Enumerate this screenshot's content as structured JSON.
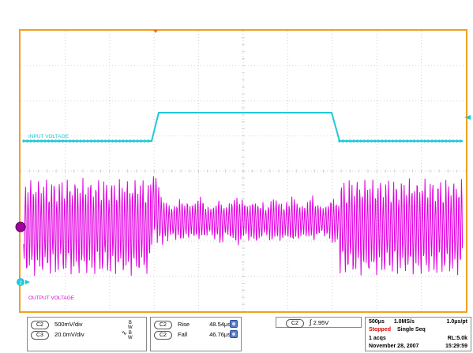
{
  "labels": {
    "input_trace": "INPUT VOLTAGE",
    "output_trace": "OUTPUT VOLTAGE",
    "ch2_marker": "2"
  },
  "channels_panel": {
    "c2_tag": "C2",
    "c2_scale": "500mV/div",
    "c3_tag": "C3",
    "c3_scale": "20.0mV/div",
    "bw_symbol": "B W"
  },
  "measurements_panel": {
    "rise_tag": "C2",
    "rise_label": "Rise",
    "rise_value": "48.54μs",
    "fall_tag": "C2",
    "fall_label": "Fall",
    "fall_value": "46.76μs"
  },
  "trigger_panel": {
    "tag": "C2",
    "level": "2.95V"
  },
  "acquisition_panel": {
    "timebase": "500μs",
    "sample_rate": "1.0MS/s",
    "resolution": "1.0μs/pt",
    "state": "Stopped",
    "mode": "Single Seq",
    "acqs": "1 acqs",
    "record_length": "RL:5.0k",
    "date": "November 28, 2007",
    "time": "15:29:59"
  },
  "colors": {
    "frame": "#f0a020",
    "grid": "#c8c8c8",
    "input_trace": "#20c8d8",
    "output_trace": "#e000e0",
    "stopped": "#e00000"
  }
}
